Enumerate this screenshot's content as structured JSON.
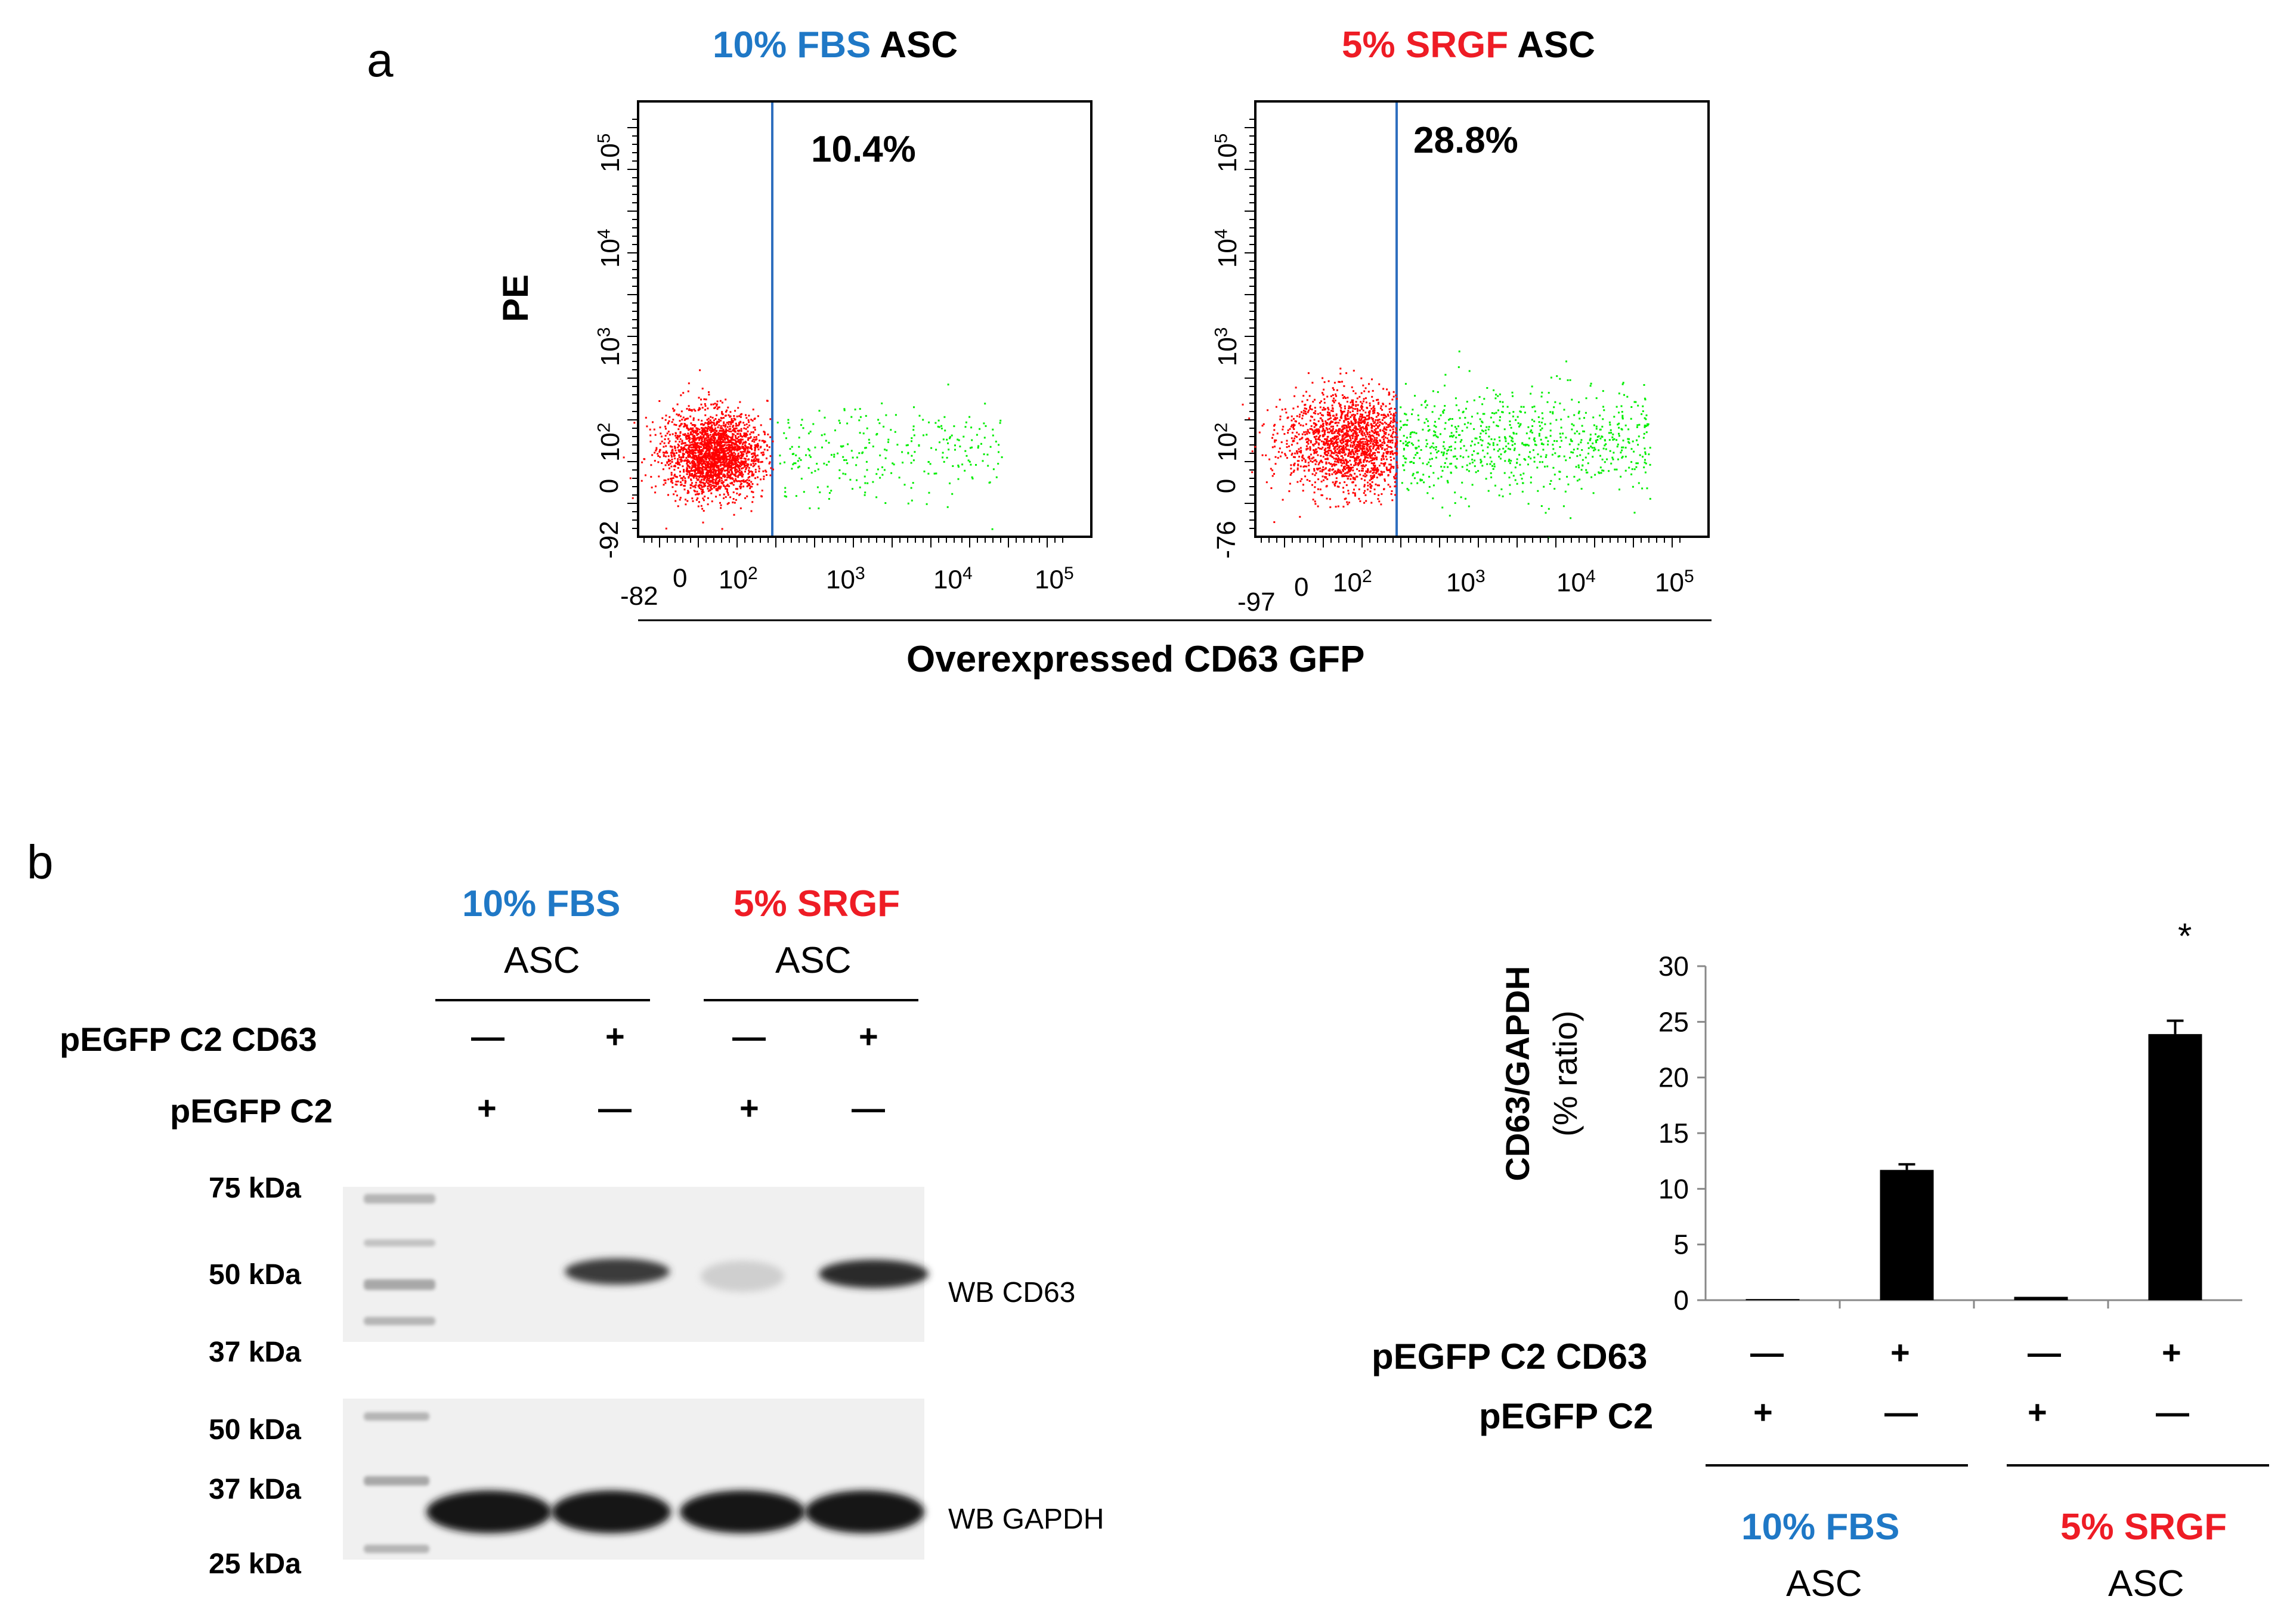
{
  "panel_a": {
    "letter": "a",
    "plots": [
      {
        "header_colored": "10% FBS",
        "header_rest": "ASC",
        "header_color": "#1f78c6",
        "percent": "10.4%",
        "y_ticks": [
          "10^5",
          "10^4",
          "10^3",
          "10^2",
          "0",
          "-92"
        ],
        "x_ticks": [
          "-82",
          "0",
          "10^2",
          "10^3",
          "10^4",
          "10^5"
        ]
      },
      {
        "header_colored": "5% SRGF",
        "header_rest": "ASC",
        "header_color": "#ee1c25",
        "percent": "28.8%",
        "y_ticks": [
          "10^5",
          "10^4",
          "10^3",
          "10^2",
          "0",
          "-76"
        ],
        "x_ticks": [
          "-97",
          "0",
          "10^2",
          "10^3",
          "10^4",
          "10^5"
        ]
      }
    ],
    "ylabel": "PE",
    "xlabel": "Overexpressed CD63 GFP",
    "colors": {
      "negative": "#ff0000",
      "positive": "#00ee00",
      "gate": "#2f6fbf"
    }
  },
  "panel_b": {
    "letter": "b",
    "blot": {
      "group1_line1": "10% FBS",
      "group1_line2": "ASC",
      "group2_line1": "5% SRGF",
      "group2_line2": "ASC",
      "row1_label": "pEGFP C2 CD63",
      "row2_label": "pEGFP C2",
      "row1_signs": [
        "—",
        "+",
        "—",
        "+"
      ],
      "row2_signs": [
        "+",
        "—",
        "+",
        "—"
      ],
      "top_markers": [
        "75 kDa",
        "50 kDa",
        "37 kDa"
      ],
      "bottom_markers": [
        "50 kDa",
        "37 kDa",
        "25 kDa"
      ],
      "top_blot_label": "WB CD63",
      "bottom_blot_label": "WB GAPDH"
    },
    "bar": {
      "row1_label": "pEGFP C2 CD63",
      "row2_label": "pEGFP C2",
      "row1_signs": [
        "—",
        "+",
        "—",
        "+"
      ],
      "row2_signs": [
        "+",
        "—",
        "+",
        "—"
      ],
      "group1_line1": "10% FBS",
      "group1_line2": "ASC",
      "group2_line1": "5% SRGF",
      "group2_line2": "ASC",
      "significance": "*"
    }
  },
  "chart_data": [
    {
      "type": "scatter",
      "title": "10% FBS ASC",
      "xlabel": "Overexpressed CD63 GFP",
      "ylabel": "PE",
      "x_scale": "biexponential",
      "gate_percent_positive": 10.4
    },
    {
      "type": "scatter",
      "title": "5% SRGF ASC",
      "xlabel": "Overexpressed CD63 GFP",
      "ylabel": "PE",
      "x_scale": "biexponential",
      "gate_percent_positive": 28.8
    },
    {
      "type": "bar",
      "ylabel": "CD63/GAPDH",
      "ylabel2": "(% ratio)",
      "ylim": [
        0,
        30
      ],
      "yticks": [
        "0",
        "5",
        "10",
        "15",
        "20",
        "25",
        "30"
      ],
      "values": [
        0.1,
        11.7,
        0.3,
        23.9
      ],
      "errors": [
        0,
        0.5,
        0,
        1.2
      ],
      "bar_color": "#000000"
    }
  ]
}
